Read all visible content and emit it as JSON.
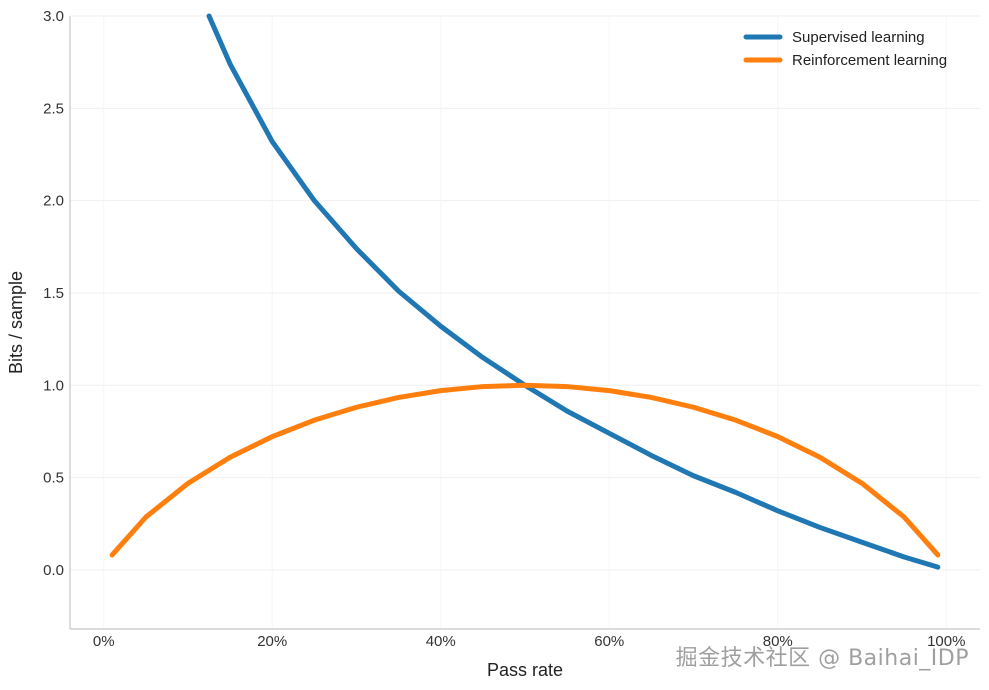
{
  "chart_data": {
    "type": "line",
    "xlabel": "Pass rate",
    "ylabel": "Bits / sample",
    "xlim": [
      -0.04,
      1.04
    ],
    "ylim": [
      -0.32,
      3.0
    ],
    "xticks": [
      0,
      0.2,
      0.4,
      0.6,
      0.8,
      1.0
    ],
    "xtick_labels": [
      "0%",
      "20%",
      "40%",
      "60%",
      "80%",
      "100%"
    ],
    "yticks": [
      0.0,
      0.5,
      1.0,
      1.5,
      2.0,
      2.5,
      3.0
    ],
    "ytick_labels": [
      "0.0",
      "0.5",
      "1.0",
      "1.5",
      "2.0",
      "2.5",
      "3.0"
    ],
    "grid": true,
    "legend_position": "top-right",
    "series": [
      {
        "name": "Supervised learning",
        "color": "#1f77b4",
        "x": [
          0.125,
          0.15,
          0.2,
          0.25,
          0.3,
          0.35,
          0.4,
          0.45,
          0.5,
          0.55,
          0.6,
          0.65,
          0.7,
          0.75,
          0.8,
          0.85,
          0.9,
          0.95,
          0.99
        ],
        "y": [
          3.0,
          2.74,
          2.32,
          2.0,
          1.74,
          1.51,
          1.32,
          1.15,
          1.0,
          0.86,
          0.74,
          0.62,
          0.51,
          0.42,
          0.32,
          0.23,
          0.15,
          0.07,
          0.015
        ]
      },
      {
        "name": "Reinforcement learning",
        "color": "#ff7f0e",
        "x": [
          0.01,
          0.05,
          0.1,
          0.15,
          0.2,
          0.25,
          0.3,
          0.35,
          0.4,
          0.45,
          0.5,
          0.55,
          0.6,
          0.65,
          0.7,
          0.75,
          0.8,
          0.85,
          0.9,
          0.95,
          0.99
        ],
        "y": [
          0.081,
          0.286,
          0.469,
          0.61,
          0.722,
          0.811,
          0.881,
          0.934,
          0.971,
          0.993,
          1.0,
          0.993,
          0.971,
          0.934,
          0.881,
          0.811,
          0.722,
          0.61,
          0.469,
          0.286,
          0.081
        ]
      }
    ]
  },
  "watermark": "掘金技术社区 @ Baihai_IDP"
}
